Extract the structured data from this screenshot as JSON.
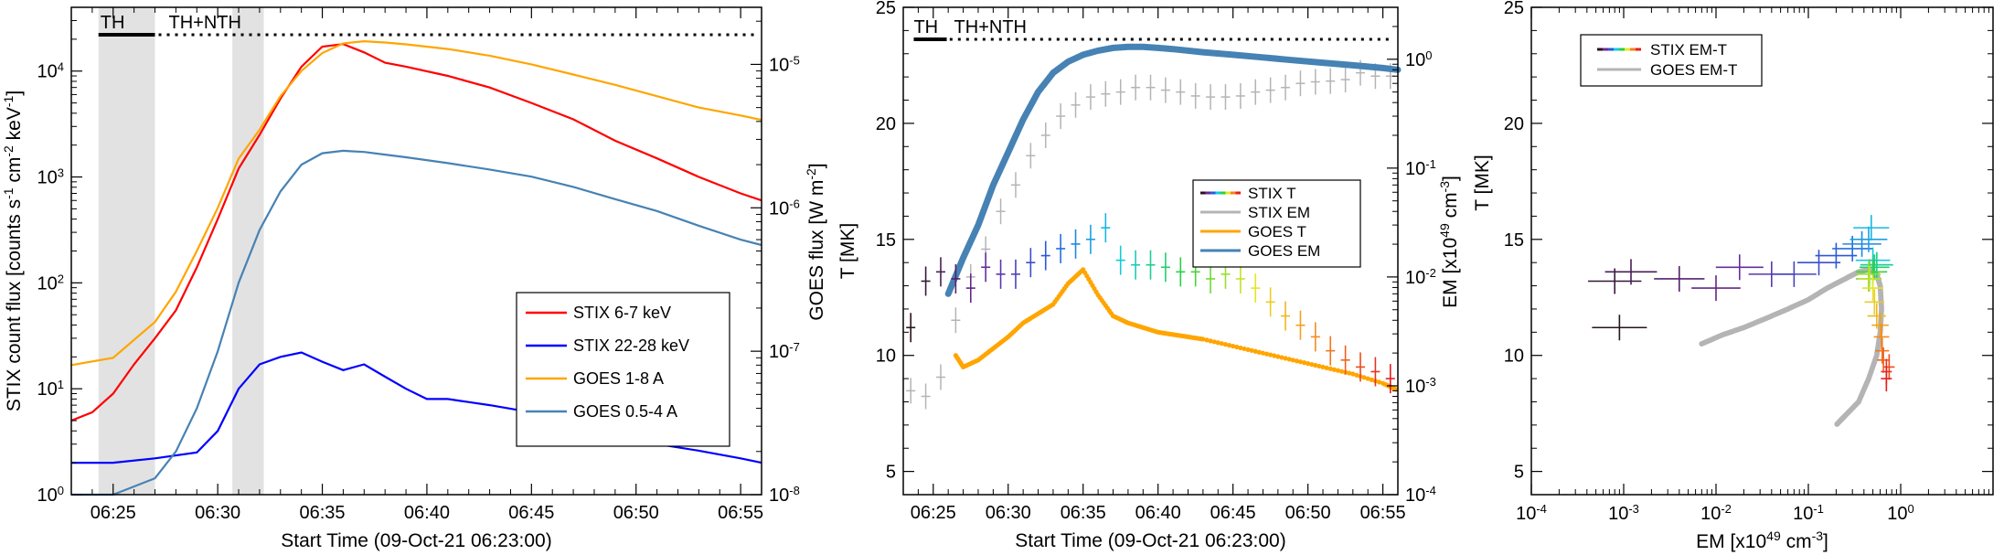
{
  "chart_data": [
    {
      "type": "line",
      "panel": "left",
      "xlabel": "Start Time (09-Oct-21 06:23:00)",
      "ylabel_parts": [
        "STIX count flux [counts s",
        "-1",
        " cm",
        "-2",
        " keV",
        "-1",
        "]"
      ],
      "y2label_parts": [
        "GOES flux [W m",
        "-2",
        "]"
      ],
      "x_range_min": [
        0,
        33
      ],
      "ylim": [
        1,
        40000
      ],
      "y2lim": [
        1e-08,
        2.5e-05
      ],
      "yscale": "log",
      "x_ticks": [
        2,
        7,
        12,
        17,
        22,
        27,
        32
      ],
      "x_tick_labels": [
        "06:25",
        "06:30",
        "06:35",
        "06:40",
        "06:45",
        "06:50",
        "06:55"
      ],
      "y_ticks": [
        1,
        10,
        100,
        1000,
        10000
      ],
      "y_tick_labels": [
        [
          "10",
          "0"
        ],
        [
          "10",
          "1"
        ],
        [
          "10",
          "2"
        ],
        [
          "10",
          "3"
        ],
        [
          "10",
          "4"
        ]
      ],
      "y2_ticks": [
        1e-08,
        1e-07,
        1e-06,
        1e-05
      ],
      "y2_tick_labels": [
        [
          "10",
          "-8"
        ],
        [
          "10",
          "-7"
        ],
        [
          "10",
          "-6"
        ],
        [
          "10",
          "-5"
        ]
      ],
      "top_labels": [
        "TH",
        "TH+NTH"
      ],
      "shaded_intervals_min": [
        [
          1.3,
          4.0
        ],
        [
          7.7,
          9.2
        ]
      ],
      "legend_position": "lower-right",
      "series": [
        {
          "name": "STIX 6-7 keV",
          "color": "#ff0000",
          "axis": "left",
          "x": [
            0,
            1,
            2,
            3,
            4,
            5,
            6,
            7,
            8,
            9,
            10,
            11,
            12,
            13,
            14,
            15,
            16,
            18,
            20,
            22,
            24,
            26,
            28,
            30,
            32,
            33
          ],
          "y": [
            5,
            6,
            9,
            17,
            30,
            55,
            140,
            400,
            1200,
            2500,
            5500,
            11000,
            17000,
            18000,
            15000,
            12000,
            11000,
            9000,
            7000,
            5000,
            3500,
            2200,
            1500,
            1000,
            700,
            600
          ]
        },
        {
          "name": "STIX 22-28 keV",
          "color": "#0000ff",
          "axis": "left",
          "x": [
            0,
            2,
            4,
            6,
            7,
            8,
            9,
            10,
            11,
            12,
            13,
            14,
            15,
            16,
            17,
            18,
            20,
            22,
            24,
            26,
            28,
            30,
            32,
            33
          ],
          "y": [
            2,
            2,
            2.2,
            2.5,
            4,
            10,
            17,
            20,
            22,
            18,
            15,
            17,
            13,
            10,
            8,
            8,
            7,
            6,
            5,
            3.5,
            3,
            2.6,
            2.2,
            2
          ]
        },
        {
          "name": "GOES 1-8 A",
          "color": "#ffa500",
          "axis": "right",
          "x": [
            0,
            2,
            4,
            5,
            6,
            7,
            8,
            9,
            10,
            11,
            12,
            13,
            14,
            15,
            16,
            18,
            20,
            22,
            24,
            26,
            28,
            30,
            32,
            33
          ],
          "y": [
            8e-08,
            9e-08,
            1.6e-07,
            2.6e-07,
            5e-07,
            1e-06,
            2.2e-06,
            3.5e-06,
            6e-06,
            9e-06,
            1.2e-05,
            1.4e-05,
            1.45e-05,
            1.42e-05,
            1.38e-05,
            1.28e-05,
            1.15e-05,
            1e-05,
            8.5e-06,
            7.2e-06,
            6e-06,
            5e-06,
            4.4e-06,
            4.1e-06
          ]
        },
        {
          "name": "GOES 0.5-4 A",
          "color": "#4682b4",
          "axis": "right",
          "x": [
            0,
            2,
            4,
            5,
            6,
            7,
            8,
            9,
            10,
            11,
            12,
            13,
            14,
            15,
            16,
            18,
            20,
            22,
            24,
            26,
            28,
            30,
            32,
            33
          ],
          "y": [
            1e-08,
            1e-08,
            1.3e-08,
            2e-08,
            4e-08,
            1e-07,
            3e-07,
            7e-07,
            1.3e-06,
            2e-06,
            2.4e-06,
            2.5e-06,
            2.45e-06,
            2.35e-06,
            2.25e-06,
            2.05e-06,
            1.85e-06,
            1.65e-06,
            1.4e-06,
            1.15e-06,
            9.5e-07,
            7.5e-07,
            6e-07,
            5.5e-07
          ]
        }
      ]
    },
    {
      "type": "scatter",
      "panel": "middle",
      "xlabel": "Start Time (09-Oct-21 06:23:00)",
      "ylabel": "T [MK]",
      "y2label_parts": [
        "EM [x10",
        "49",
        " cm",
        "-3",
        "]"
      ],
      "x_range_min": [
        0,
        33
      ],
      "ylim": [
        4,
        25
      ],
      "y2lim": [
        0.0001,
        3
      ],
      "x_ticks": [
        2,
        7,
        12,
        17,
        22,
        27,
        32
      ],
      "x_tick_labels": [
        "06:25",
        "06:30",
        "06:35",
        "06:40",
        "06:45",
        "06:50",
        "06:55"
      ],
      "y_ticks": [
        5,
        10,
        15,
        20,
        25
      ],
      "y_tick_labels": [
        "5",
        "10",
        "15",
        "20",
        "25"
      ],
      "y2_ticks": [
        0.0001,
        0.001,
        0.01,
        0.1,
        1
      ],
      "y2_tick_labels": [
        [
          "10",
          "-4"
        ],
        [
          "10",
          "-3"
        ],
        [
          "10",
          "-2"
        ],
        [
          "10",
          "-1"
        ],
        [
          "10",
          "0"
        ]
      ],
      "top_labels": [
        "TH",
        "TH+NTH"
      ],
      "legend_position": "center-right",
      "series": [
        {
          "name": "STIX T",
          "color": "rainbow",
          "axis": "left",
          "x": [
            0.5,
            1.5,
            2.5,
            3.5,
            4.5,
            5.5,
            6.5,
            7.5,
            8.5,
            9.5,
            10.5,
            11.5,
            12.5,
            13.5,
            14.5,
            15.5,
            16.5,
            17.5,
            18.5,
            19.5,
            20.5,
            21.5,
            22.5,
            23.5,
            24.5,
            25.5,
            26.5,
            27.5,
            28.5,
            29.5,
            30.5,
            31.5,
            32.5
          ],
          "y": [
            11.2,
            13.2,
            13.6,
            13.3,
            12.9,
            13.8,
            13.5,
            13.5,
            14.0,
            14.3,
            14.6,
            14.8,
            15.0,
            15.5,
            14.1,
            13.9,
            13.9,
            13.8,
            13.6,
            13.6,
            13.3,
            13.5,
            13.3,
            12.9,
            12.3,
            11.7,
            11.3,
            10.8,
            10.2,
            9.8,
            9.5,
            9.3,
            9.0
          ]
        },
        {
          "name": "STIX EM",
          "color": "#b4b4b4",
          "axis": "right",
          "x": [
            0.5,
            1.5,
            2.5,
            3.5,
            4.5,
            5.5,
            6.5,
            7.5,
            8.5,
            9.5,
            10.5,
            11.5,
            12.5,
            13.5,
            14.5,
            15.5,
            16.5,
            17.5,
            18.5,
            19.5,
            20.5,
            21.5,
            22.5,
            23.5,
            24.5,
            25.5,
            26.5,
            27.5,
            28.5,
            29.5,
            30.5,
            31.5,
            32.5
          ],
          "y": [
            0.0009,
            0.0008,
            0.0012,
            0.004,
            0.01,
            0.018,
            0.04,
            0.07,
            0.13,
            0.2,
            0.3,
            0.38,
            0.45,
            0.48,
            0.5,
            0.55,
            0.55,
            0.52,
            0.5,
            0.46,
            0.45,
            0.45,
            0.46,
            0.5,
            0.52,
            0.55,
            0.6,
            0.62,
            0.63,
            0.65,
            0.75,
            0.7,
            0.7
          ]
        },
        {
          "name": "GOES T",
          "color": "#ffa500",
          "axis": "left",
          "x": [
            3.5,
            4,
            5,
            6,
            7,
            8,
            9,
            10,
            11,
            12,
            13,
            14,
            15,
            16,
            17,
            18,
            19,
            20,
            22,
            24,
            26,
            28,
            30,
            32,
            33
          ],
          "y": [
            10.0,
            9.5,
            9.8,
            10.3,
            10.8,
            11.4,
            11.8,
            12.2,
            13.1,
            13.7,
            12.6,
            11.7,
            11.4,
            11.2,
            11.0,
            10.9,
            10.8,
            10.7,
            10.4,
            10.1,
            9.8,
            9.5,
            9.2,
            8.8,
            8.5
          ]
        },
        {
          "name": "GOES EM",
          "color": "#4682b4",
          "axis": "right",
          "x": [
            3,
            4,
            5,
            6,
            7,
            8,
            9,
            10,
            11,
            12,
            13,
            14,
            15,
            16,
            17,
            18,
            20,
            22,
            24,
            26,
            28,
            30,
            32,
            33
          ],
          "y": [
            0.007,
            0.015,
            0.03,
            0.07,
            0.14,
            0.28,
            0.5,
            0.75,
            0.95,
            1.1,
            1.2,
            1.27,
            1.3,
            1.3,
            1.27,
            1.24,
            1.16,
            1.1,
            1.04,
            0.98,
            0.93,
            0.88,
            0.83,
            0.8
          ]
        }
      ]
    },
    {
      "type": "scatter",
      "panel": "right",
      "xlabel_parts": [
        "EM [x10",
        "49",
        " cm",
        "-3",
        "]"
      ],
      "ylabel": "T [MK]",
      "xscale": "log",
      "xlim": [
        0.0001,
        10
      ],
      "ylim": [
        4,
        25
      ],
      "x_ticks": [
        0.0001,
        0.001,
        0.01,
        0.1,
        1
      ],
      "x_tick_labels": [
        [
          "10",
          "-4"
        ],
        [
          "10",
          "-3"
        ],
        [
          "10",
          "-2"
        ],
        [
          "10",
          "-1"
        ],
        [
          "10",
          "0"
        ]
      ],
      "y_ticks": [
        5,
        10,
        15,
        20,
        25
      ],
      "y_tick_labels": [
        "5",
        "10",
        "15",
        "20",
        "25"
      ],
      "legend_position": "top-left",
      "series": [
        {
          "name": "STIX EM-T",
          "color": "rainbow",
          "x": [
            0.0009,
            0.0008,
            0.0012,
            0.004,
            0.01,
            0.018,
            0.04,
            0.07,
            0.13,
            0.2,
            0.3,
            0.38,
            0.45,
            0.48,
            0.5,
            0.55,
            0.55,
            0.52,
            0.5,
            0.46,
            0.45,
            0.45,
            0.46,
            0.5,
            0.52,
            0.55,
            0.6,
            0.62,
            0.63,
            0.65,
            0.75,
            0.7,
            0.7
          ],
          "y": [
            11.2,
            13.2,
            13.6,
            13.3,
            12.9,
            13.8,
            13.5,
            13.5,
            14.0,
            14.3,
            14.6,
            14.8,
            15.0,
            15.5,
            14.1,
            13.9,
            13.9,
            13.8,
            13.6,
            13.6,
            13.3,
            13.5,
            13.3,
            12.9,
            12.3,
            11.7,
            11.3,
            10.8,
            10.2,
            9.8,
            9.5,
            9.3,
            9.0
          ]
        },
        {
          "name": "GOES EM-T",
          "color": "#b4b4b4",
          "x": [
            0.007,
            0.012,
            0.02,
            0.035,
            0.06,
            0.1,
            0.16,
            0.25,
            0.35,
            0.45,
            0.55,
            0.6,
            0.62,
            0.6,
            0.55,
            0.45,
            0.35,
            0.25,
            0.2
          ],
          "y": [
            10.5,
            10.9,
            11.2,
            11.6,
            12.0,
            12.4,
            12.9,
            13.3,
            13.6,
            13.7,
            13.5,
            13.0,
            12.0,
            11.0,
            10.0,
            9.0,
            8.0,
            7.4,
            7.0
          ]
        }
      ]
    }
  ]
}
